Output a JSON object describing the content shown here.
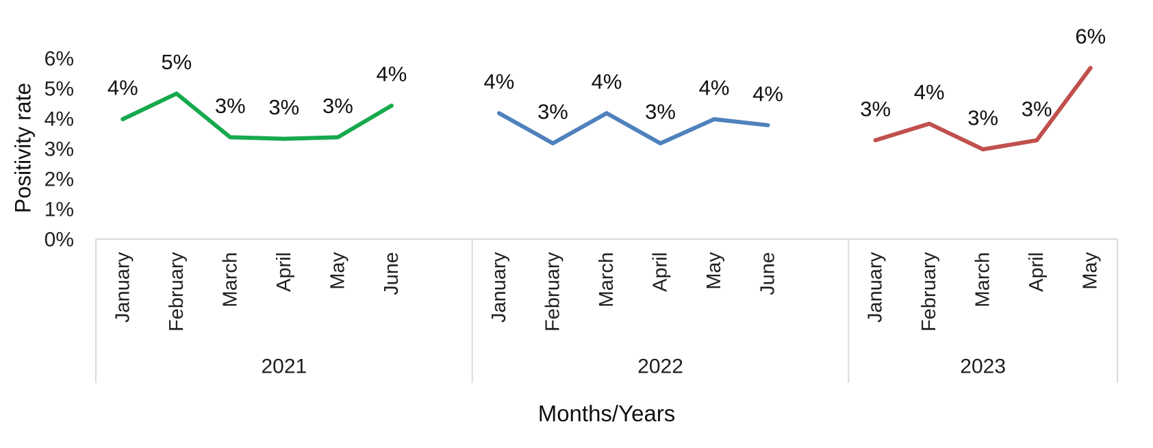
{
  "chart_data": {
    "type": "line",
    "title": "",
    "xlabel": "Months/Years",
    "ylabel": "Positivity rate",
    "ylim": [
      0,
      6
    ],
    "y_unit": "%",
    "y_ticks": [
      "0%",
      "1%",
      "2%",
      "3%",
      "4%",
      "5%",
      "6%"
    ],
    "grid": false,
    "legend": "none",
    "axis_line_color": "#d9d9d9",
    "text_color": "#1f1f1f",
    "series": [
      {
        "name": "2021",
        "color": "#17a94d",
        "categories": [
          "January",
          "February",
          "March",
          "April",
          "May",
          "June"
        ],
        "values": [
          4.0,
          4.85,
          3.4,
          3.35,
          3.4,
          4.45
        ],
        "point_labels": [
          "4%",
          "5%",
          "3%",
          "3%",
          "3%",
          "4%"
        ]
      },
      {
        "name": "2022",
        "color": "#4f81bd",
        "categories": [
          "January",
          "February",
          "March",
          "April",
          "May",
          "June"
        ],
        "values": [
          4.2,
          3.2,
          4.2,
          3.2,
          4.0,
          3.8
        ],
        "point_labels": [
          "4%",
          "3%",
          "4%",
          "3%",
          "4%",
          "4%"
        ]
      },
      {
        "name": "2023",
        "color": "#c0504d",
        "categories": [
          "January",
          "February",
          "March",
          "April",
          "May"
        ],
        "values": [
          3.3,
          3.85,
          3.0,
          3.3,
          5.7
        ],
        "point_labels": [
          "3%",
          "4%",
          "3%",
          "3%",
          "6%"
        ]
      }
    ]
  }
}
